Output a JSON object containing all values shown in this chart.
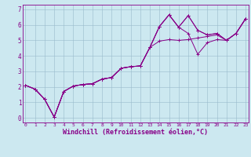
{
  "background_color": "#cce8f0",
  "line_color": "#880088",
  "grid_color": "#99bbcc",
  "xlabel": "Windchill (Refroidissement éolien,°C)",
  "xlabel_fontsize": 6.0,
  "xtick_labels": [
    "0",
    "1",
    "2",
    "3",
    "4",
    "5",
    "6",
    "7",
    "8",
    "9",
    "10",
    "11",
    "12",
    "13",
    "14",
    "15",
    "16",
    "17",
    "18",
    "19",
    "20",
    "21",
    "22",
    "23"
  ],
  "ytick_labels": [
    "0",
    "1",
    "2",
    "3",
    "4",
    "5",
    "6",
    "7"
  ],
  "xlim": [
    -0.3,
    23.3
  ],
  "ylim": [
    -0.3,
    7.3
  ],
  "series": [
    [
      2.1,
      1.85,
      1.2,
      0.05,
      1.7,
      2.05,
      2.15,
      2.2,
      2.5,
      2.6,
      3.2,
      3.3,
      3.35,
      4.55,
      5.9,
      6.65,
      5.85,
      6.6,
      5.65,
      5.35,
      5.45,
      5.0,
      5.45,
      6.4
    ],
    [
      2.1,
      1.85,
      1.2,
      0.05,
      1.7,
      2.05,
      2.15,
      2.2,
      2.5,
      2.6,
      3.2,
      3.3,
      3.35,
      4.55,
      5.9,
      6.65,
      5.85,
      5.45,
      4.1,
      4.85,
      5.05,
      5.0,
      5.45,
      6.4
    ],
    [
      2.1,
      1.85,
      1.2,
      0.05,
      1.7,
      2.05,
      2.15,
      2.2,
      2.5,
      2.6,
      3.2,
      3.3,
      3.35,
      4.55,
      4.95,
      5.05,
      5.0,
      5.05,
      5.15,
      5.25,
      5.35,
      5.0,
      5.45,
      6.4
    ],
    [
      2.1,
      1.85,
      1.2,
      0.05,
      1.7,
      2.05,
      2.15,
      2.2,
      2.5,
      2.6,
      3.2,
      3.3,
      3.35,
      4.55,
      5.9,
      6.65,
      5.85,
      6.6,
      5.65,
      5.35,
      5.45,
      5.0,
      5.45,
      6.4
    ]
  ]
}
